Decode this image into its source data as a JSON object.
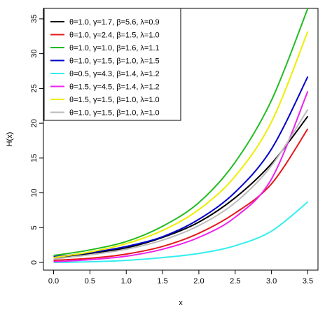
{
  "chart_data": {
    "type": "line",
    "title": "",
    "xlabel": "x",
    "ylabel": "H(x)",
    "xlim": [
      -0.14,
      3.64
    ],
    "ylim": [
      -1.1,
      36.5
    ],
    "x_ticks": [
      0.0,
      0.5,
      1.0,
      1.5,
      2.0,
      2.5,
      3.0,
      3.5
    ],
    "x_tick_labels": [
      "0.0",
      "0.5",
      "1.0",
      "1.5",
      "2.0",
      "2.5",
      "3.0",
      "3.5"
    ],
    "y_ticks": [
      0,
      5,
      10,
      15,
      20,
      25,
      30,
      35
    ],
    "y_tick_labels": [
      "0",
      "5",
      "10",
      "15",
      "20",
      "25",
      "30",
      "35"
    ],
    "legend_position": "top-left",
    "grid": false,
    "x": [
      0.0,
      0.5,
      1.0,
      1.5,
      2.0,
      2.5,
      3.0,
      3.5
    ],
    "series": [
      {
        "name": "θ=1.0, γ=1.7, β=5.6, λ=0.9",
        "color": "#000000",
        "values": [
          0.7,
          1.3,
          2.1,
          3.6,
          5.8,
          9.3,
          14.2,
          21.0
        ]
      },
      {
        "name": "θ=1.0, γ=2.4, β=1.5, λ=1.0",
        "color": "#e31a1c",
        "values": [
          0.3,
          0.6,
          1.2,
          2.3,
          4.2,
          7.1,
          11.3,
          19.2
        ]
      },
      {
        "name": "θ=1.0, γ=1.0, β=1.6, λ=1.1",
        "color": "#22bb22",
        "values": [
          1.0,
          1.8,
          3.0,
          5.2,
          8.6,
          14.4,
          23.3,
          36.5
        ]
      },
      {
        "name": "θ=1.0, γ=1.5, β=1.0, λ=1.5",
        "color": "#0000cc",
        "values": [
          0.8,
          1.4,
          2.3,
          3.7,
          6.2,
          10.1,
          16.3,
          26.7
        ]
      },
      {
        "name": "θ=0.5, γ=4.3, β=1.4, λ=1.2",
        "color": "#33eeee",
        "values": [
          0.0,
          0.1,
          0.3,
          0.7,
          1.3,
          2.4,
          4.5,
          8.7
        ]
      },
      {
        "name": "θ=1.5, γ=4.5, β=1.4, λ=1.2",
        "color": "#ee22ee",
        "values": [
          0.1,
          0.4,
          0.9,
          1.9,
          3.6,
          6.5,
          12.0,
          24.6
        ]
      },
      {
        "name": "θ=1.5, γ=1.5, β=1.0, λ=1.0",
        "color": "#eeee00",
        "values": [
          0.7,
          1.5,
          2.7,
          4.6,
          7.6,
          12.4,
          20.2,
          33.2
        ]
      },
      {
        "name": "θ=1.0, γ=1.5, β=1.0, λ=1.0",
        "color": "#bbbbbb",
        "values": [
          0.5,
          1.1,
          1.9,
          3.2,
          5.3,
          8.6,
          13.9,
          22.0
        ]
      }
    ]
  }
}
